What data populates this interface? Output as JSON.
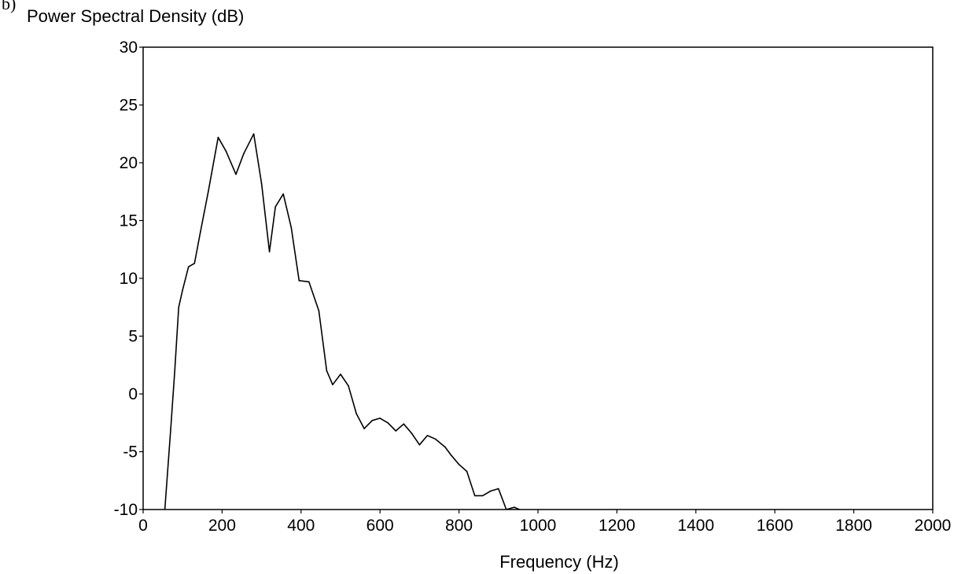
{
  "chart_data": {
    "type": "line",
    "panel_label": "b)",
    "ylabel": "Power Spectral Density (dB)",
    "xlabel": "Frequency (Hz)",
    "xlim": [
      0,
      2000
    ],
    "ylim": [
      -10,
      30
    ],
    "x_ticks": [
      0,
      200,
      400,
      600,
      800,
      1000,
      1200,
      1400,
      1600,
      1800,
      2000
    ],
    "y_ticks": [
      -10,
      -5,
      0,
      5,
      10,
      15,
      20,
      25,
      30
    ],
    "x_tick_labels": [
      "0",
      "200",
      "400",
      "600",
      "800",
      "1000",
      "1200",
      "1400",
      "1600",
      "1800",
      "2000"
    ],
    "y_tick_labels": [
      "-10",
      "-5",
      "0",
      "5",
      "10",
      "15",
      "20",
      "25",
      "30"
    ],
    "grid": false,
    "line_color": "#000000",
    "series": [
      {
        "x": [
          55,
          70,
          80,
          90,
          100,
          115,
          130,
          145,
          165,
          190,
          210,
          235,
          255,
          280,
          300,
          320,
          335,
          355,
          375,
          395,
          420,
          445,
          465,
          480,
          500,
          520,
          540,
          560,
          580,
          600,
          620,
          640,
          660,
          680,
          700,
          720,
          740,
          765,
          780,
          800,
          820,
          840,
          860,
          880,
          900,
          920,
          940,
          960,
          980,
          1000,
          1020,
          1035,
          1055
        ],
        "y": [
          -10,
          -3,
          2,
          7.5,
          9,
          11,
          11.3,
          14,
          17.5,
          22.2,
          21,
          19,
          20.8,
          22.5,
          18.2,
          12.3,
          16.2,
          17.3,
          14.4,
          9.8,
          9.7,
          7.2,
          2,
          0.8,
          1.7,
          0.7,
          -1.7,
          -3,
          -2.3,
          -2.1,
          -2.5,
          -3.2,
          -2.6,
          -3.4,
          -4.4,
          -3.6,
          -3.9,
          -4.6,
          -5.3,
          -6.1,
          -6.7,
          -8.8,
          -8.8,
          -8.4,
          -8.2,
          -10,
          -9.8,
          -10.1,
          -10.2,
          -10.2,
          -10.3,
          -10.3,
          -10.4
        ]
      }
    ]
  }
}
